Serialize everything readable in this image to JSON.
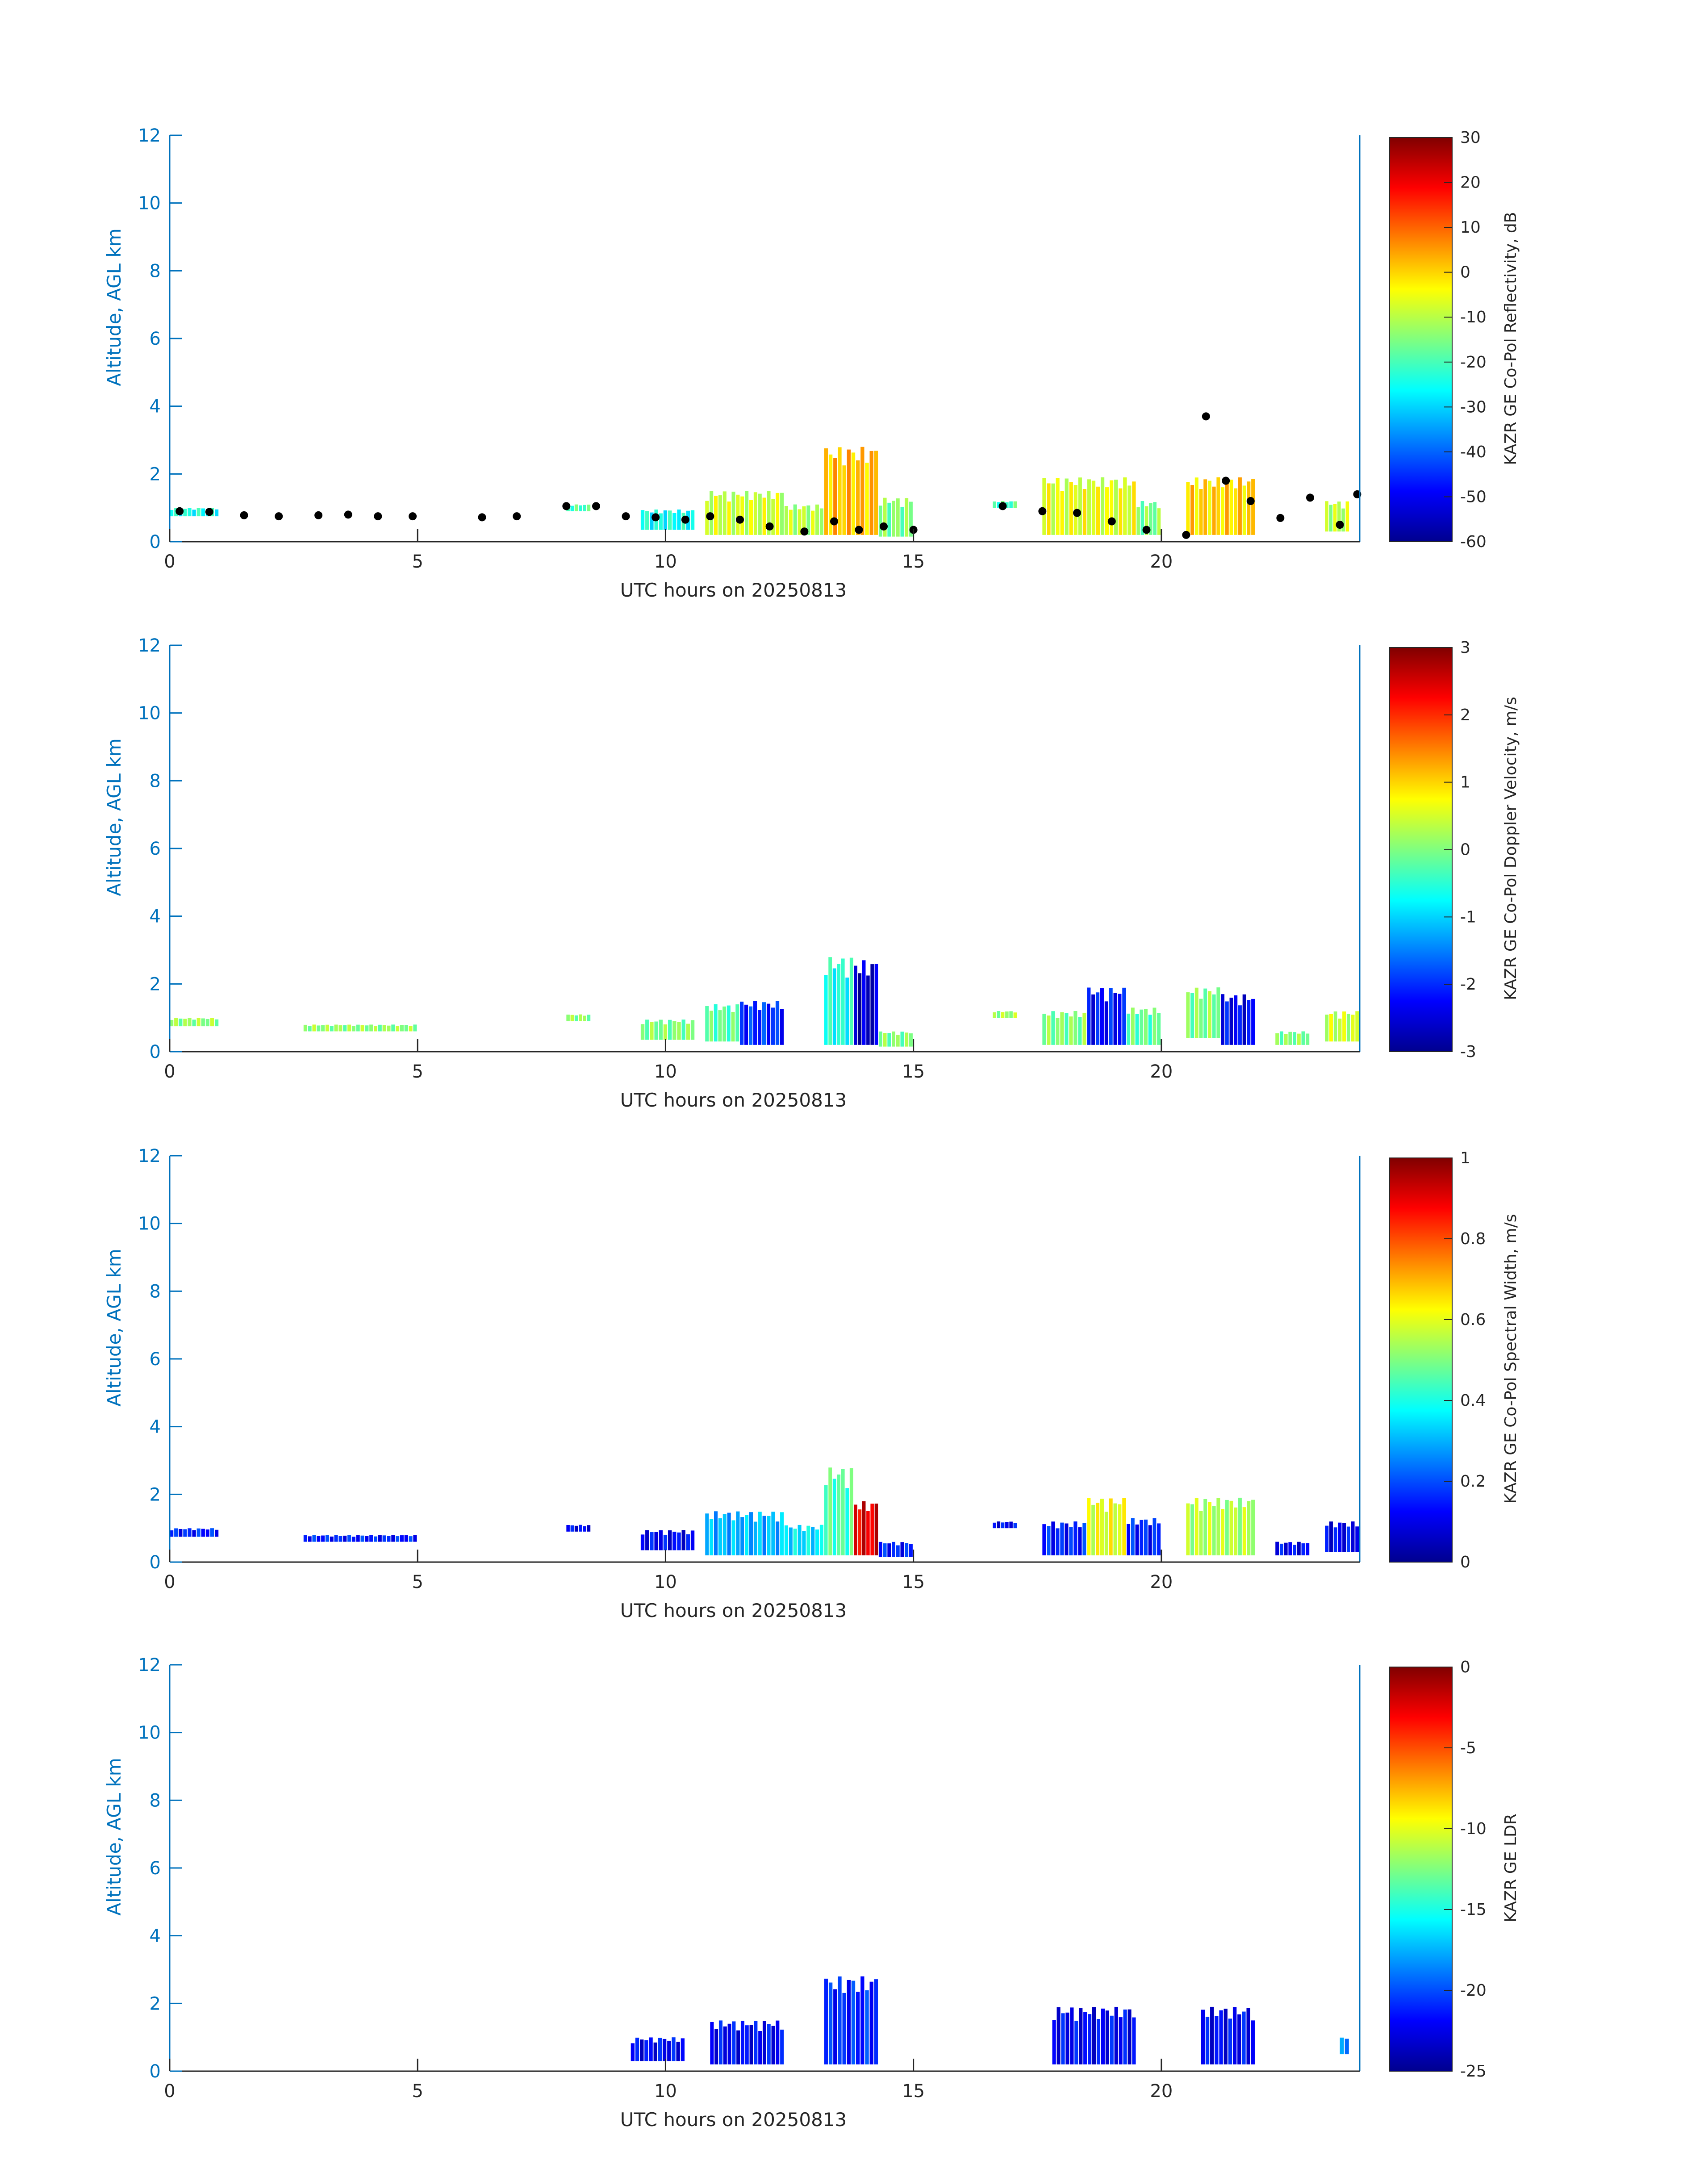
{
  "colors": {
    "axis_left": "#0072BD",
    "axis_bottom": "#262626",
    "colormap": "jet",
    "cloud_base_marker": "#000000"
  },
  "chart_data": [
    {
      "type": "heatmap",
      "panel": 1,
      "title": "",
      "xlabel": "UTC hours on 20250813",
      "ylabel": "Altitude, AGL km",
      "xlim": [
        0,
        24
      ],
      "ylim": [
        0,
        12
      ],
      "xticks": [
        "0",
        "5",
        "10",
        "15",
        "20"
      ],
      "yticks": [
        "0",
        "2",
        "4",
        "6",
        "8",
        "10",
        "12"
      ],
      "colorbar": {
        "label": "KAZR GE Co-Pol Reflectivity, dB",
        "range": [
          -60,
          30
        ],
        "ticks": [
          "30",
          "20",
          "10",
          "0",
          "-10",
          "-20",
          "-30",
          "-40",
          "-50",
          "-60"
        ]
      },
      "overlay": "cloud-base points (black dots)",
      "echo_segments": [
        {
          "t0": 0.0,
          "t1": 1.0,
          "base": 0.75,
          "top": 1.0,
          "value": -25
        },
        {
          "t0": 8.0,
          "t1": 8.5,
          "base": 0.9,
          "top": 1.1,
          "value": -20
        },
        {
          "t0": 9.5,
          "t1": 10.6,
          "base": 0.35,
          "top": 0.95,
          "value": -25
        },
        {
          "t0": 10.8,
          "t1": 12.4,
          "base": 0.2,
          "top": 1.5,
          "value": -8
        },
        {
          "t0": 12.4,
          "t1": 13.2,
          "base": 0.2,
          "top": 1.1,
          "value": -10
        },
        {
          "t0": 13.2,
          "t1": 14.3,
          "base": 0.2,
          "top": 2.8,
          "value": 2
        },
        {
          "t0": 14.3,
          "t1": 15.0,
          "base": 0.15,
          "top": 1.3,
          "value": -15
        },
        {
          "t0": 16.6,
          "t1": 17.1,
          "base": 1.0,
          "top": 1.2,
          "value": -20
        },
        {
          "t0": 17.6,
          "t1": 19.5,
          "base": 0.2,
          "top": 1.9,
          "value": -6
        },
        {
          "t0": 19.5,
          "t1": 20.0,
          "base": 0.2,
          "top": 1.2,
          "value": -15
        },
        {
          "t0": 20.5,
          "t1": 21.9,
          "base": 0.2,
          "top": 1.9,
          "value": 0
        },
        {
          "t0": 23.3,
          "t1": 23.8,
          "base": 0.3,
          "top": 1.2,
          "value": -10
        }
      ],
      "cloud_base": [
        {
          "t": 0.2,
          "z": 0.9
        },
        {
          "t": 0.8,
          "z": 0.88
        },
        {
          "t": 1.5,
          "z": 0.78
        },
        {
          "t": 2.2,
          "z": 0.75
        },
        {
          "t": 3.0,
          "z": 0.78
        },
        {
          "t": 3.6,
          "z": 0.8
        },
        {
          "t": 4.2,
          "z": 0.75
        },
        {
          "t": 4.9,
          "z": 0.75
        },
        {
          "t": 6.3,
          "z": 0.72
        },
        {
          "t": 7.0,
          "z": 0.75
        },
        {
          "t": 8.0,
          "z": 1.05
        },
        {
          "t": 8.6,
          "z": 1.05
        },
        {
          "t": 9.2,
          "z": 0.75
        },
        {
          "t": 9.8,
          "z": 0.72
        },
        {
          "t": 10.4,
          "z": 0.65
        },
        {
          "t": 10.9,
          "z": 0.75
        },
        {
          "t": 11.5,
          "z": 0.65
        },
        {
          "t": 12.1,
          "z": 0.45
        },
        {
          "t": 12.8,
          "z": 0.3
        },
        {
          "t": 13.4,
          "z": 0.6
        },
        {
          "t": 13.9,
          "z": 0.35
        },
        {
          "t": 14.4,
          "z": 0.45
        },
        {
          "t": 15.0,
          "z": 0.35
        },
        {
          "t": 16.8,
          "z": 1.05
        },
        {
          "t": 17.6,
          "z": 0.9
        },
        {
          "t": 18.3,
          "z": 0.85
        },
        {
          "t": 19.0,
          "z": 0.6
        },
        {
          "t": 19.7,
          "z": 0.35
        },
        {
          "t": 20.5,
          "z": 0.2
        },
        {
          "t": 20.9,
          "z": 3.7
        },
        {
          "t": 21.3,
          "z": 1.8
        },
        {
          "t": 21.8,
          "z": 1.2
        },
        {
          "t": 22.4,
          "z": 0.7
        },
        {
          "t": 23.0,
          "z": 1.3
        },
        {
          "t": 23.6,
          "z": 0.5
        },
        {
          "t": 23.95,
          "z": 1.4
        }
      ]
    },
    {
      "type": "heatmap",
      "panel": 2,
      "title": "",
      "xlabel": "UTC hours on 20250813",
      "ylabel": "Altitude, AGL km",
      "xlim": [
        0,
        24
      ],
      "ylim": [
        0,
        12
      ],
      "xticks": [
        "0",
        "5",
        "10",
        "15",
        "20"
      ],
      "yticks": [
        "0",
        "2",
        "4",
        "6",
        "8",
        "10",
        "12"
      ],
      "colorbar": {
        "label": "KAZR GE Co-Pol Doppler Velocity, m/s",
        "range": [
          -3,
          3
        ],
        "ticks": [
          "3",
          "2",
          "1",
          "0",
          "-1",
          "-2",
          "-3"
        ]
      },
      "echo_segments": [
        {
          "t0": 0.0,
          "t1": 1.0,
          "base": 0.75,
          "top": 1.0,
          "value": 0.1
        },
        {
          "t0": 2.7,
          "t1": 5.0,
          "base": 0.6,
          "top": 0.8,
          "value": 0.1
        },
        {
          "t0": 8.0,
          "t1": 8.5,
          "base": 0.9,
          "top": 1.1,
          "value": 0.1
        },
        {
          "t0": 9.5,
          "t1": 10.6,
          "base": 0.35,
          "top": 0.95,
          "value": 0.0
        },
        {
          "t0": 10.8,
          "t1": 11.5,
          "base": 0.3,
          "top": 1.4,
          "value": -0.2
        },
        {
          "t0": 11.5,
          "t1": 12.4,
          "base": 0.2,
          "top": 1.5,
          "value": -2.0
        },
        {
          "t0": 13.2,
          "t1": 13.8,
          "base": 0.2,
          "top": 2.8,
          "value": -0.6
        },
        {
          "t0": 13.8,
          "t1": 14.3,
          "base": 0.2,
          "top": 2.7,
          "value": -2.6
        },
        {
          "t0": 14.3,
          "t1": 15.0,
          "base": 0.15,
          "top": 0.6,
          "value": 0.0
        },
        {
          "t0": 16.6,
          "t1": 17.1,
          "base": 1.0,
          "top": 1.2,
          "value": 0.2
        },
        {
          "t0": 17.6,
          "t1": 18.5,
          "base": 0.2,
          "top": 1.2,
          "value": 0.0
        },
        {
          "t0": 18.5,
          "t1": 19.3,
          "base": 0.2,
          "top": 1.9,
          "value": -2.2
        },
        {
          "t0": 19.3,
          "t1": 20.0,
          "base": 0.2,
          "top": 1.3,
          "value": -0.2
        },
        {
          "t0": 20.5,
          "t1": 21.2,
          "base": 0.4,
          "top": 1.9,
          "value": 0.0
        },
        {
          "t0": 21.2,
          "t1": 21.9,
          "base": 0.2,
          "top": 1.7,
          "value": -2.3
        },
        {
          "t0": 22.3,
          "t1": 23.0,
          "base": 0.2,
          "top": 0.6,
          "value": 0.0
        },
        {
          "t0": 23.3,
          "t1": 24.0,
          "base": 0.3,
          "top": 1.2,
          "value": 0.4
        }
      ]
    },
    {
      "type": "heatmap",
      "panel": 3,
      "title": "",
      "xlabel": "UTC hours on 20250813",
      "ylabel": "Altitude, AGL km",
      "xlim": [
        0,
        24
      ],
      "ylim": [
        0,
        12
      ],
      "xticks": [
        "0",
        "5",
        "10",
        "15",
        "20"
      ],
      "yticks": [
        "0",
        "2",
        "4",
        "6",
        "8",
        "10",
        "12"
      ],
      "colorbar": {
        "label": "KAZR GE Co-Pol Spectral Width, m/s",
        "range": [
          0,
          1
        ],
        "ticks": [
          "1",
          "0.8",
          "0.6",
          "0.4",
          "0.2",
          "0"
        ]
      },
      "echo_segments": [
        {
          "t0": 0.0,
          "t1": 1.0,
          "base": 0.75,
          "top": 1.0,
          "value": 0.15
        },
        {
          "t0": 2.7,
          "t1": 5.0,
          "base": 0.6,
          "top": 0.8,
          "value": 0.15
        },
        {
          "t0": 8.0,
          "t1": 8.5,
          "base": 0.9,
          "top": 1.1,
          "value": 0.12
        },
        {
          "t0": 9.5,
          "t1": 10.6,
          "base": 0.35,
          "top": 0.95,
          "value": 0.12
        },
        {
          "t0": 10.8,
          "t1": 12.4,
          "base": 0.2,
          "top": 1.5,
          "value": 0.3
        },
        {
          "t0": 12.4,
          "t1": 13.2,
          "base": 0.2,
          "top": 1.1,
          "value": 0.35
        },
        {
          "t0": 13.2,
          "t1": 13.8,
          "base": 0.2,
          "top": 2.8,
          "value": 0.45
        },
        {
          "t0": 13.8,
          "t1": 14.3,
          "base": 0.2,
          "top": 1.8,
          "value": 0.9
        },
        {
          "t0": 14.3,
          "t1": 15.0,
          "base": 0.15,
          "top": 0.6,
          "value": 0.15
        },
        {
          "t0": 16.6,
          "t1": 17.1,
          "base": 1.0,
          "top": 1.2,
          "value": 0.12
        },
        {
          "t0": 17.6,
          "t1": 18.5,
          "base": 0.2,
          "top": 1.2,
          "value": 0.15
        },
        {
          "t0": 18.5,
          "t1": 19.3,
          "base": 0.2,
          "top": 1.9,
          "value": 0.6
        },
        {
          "t0": 19.3,
          "t1": 20.0,
          "base": 0.2,
          "top": 1.3,
          "value": 0.15
        },
        {
          "t0": 20.5,
          "t1": 21.9,
          "base": 0.2,
          "top": 1.9,
          "value": 0.55
        },
        {
          "t0": 22.3,
          "t1": 23.0,
          "base": 0.2,
          "top": 0.6,
          "value": 0.12
        },
        {
          "t0": 23.3,
          "t1": 24.0,
          "base": 0.3,
          "top": 1.2,
          "value": 0.12
        }
      ]
    },
    {
      "type": "heatmap",
      "panel": 4,
      "title": "",
      "xlabel": "UTC hours on 20250813",
      "ylabel": "Altitude, AGL km",
      "xlim": [
        0,
        24
      ],
      "ylim": [
        0,
        12
      ],
      "xticks": [
        "0",
        "5",
        "10",
        "15",
        "20"
      ],
      "yticks": [
        "0",
        "2",
        "4",
        "6",
        "8",
        "10",
        "12"
      ],
      "colorbar": {
        "label": "KAZR GE LDR",
        "range": [
          -25,
          0
        ],
        "ticks": [
          "0",
          "-5",
          "-10",
          "-15",
          "-20",
          "-25"
        ]
      },
      "echo_segments": [
        {
          "t0": 9.3,
          "t1": 10.4,
          "base": 0.3,
          "top": 1.0,
          "value": -22
        },
        {
          "t0": 10.9,
          "t1": 12.4,
          "base": 0.2,
          "top": 1.5,
          "value": -22
        },
        {
          "t0": 13.2,
          "t1": 14.3,
          "base": 0.2,
          "top": 2.8,
          "value": -21
        },
        {
          "t0": 17.8,
          "t1": 19.5,
          "base": 0.2,
          "top": 1.9,
          "value": -22
        },
        {
          "t0": 20.8,
          "t1": 21.9,
          "base": 0.2,
          "top": 1.9,
          "value": -22
        },
        {
          "t0": 23.6,
          "t1": 23.8,
          "base": 0.5,
          "top": 1.0,
          "value": -18
        }
      ]
    }
  ]
}
